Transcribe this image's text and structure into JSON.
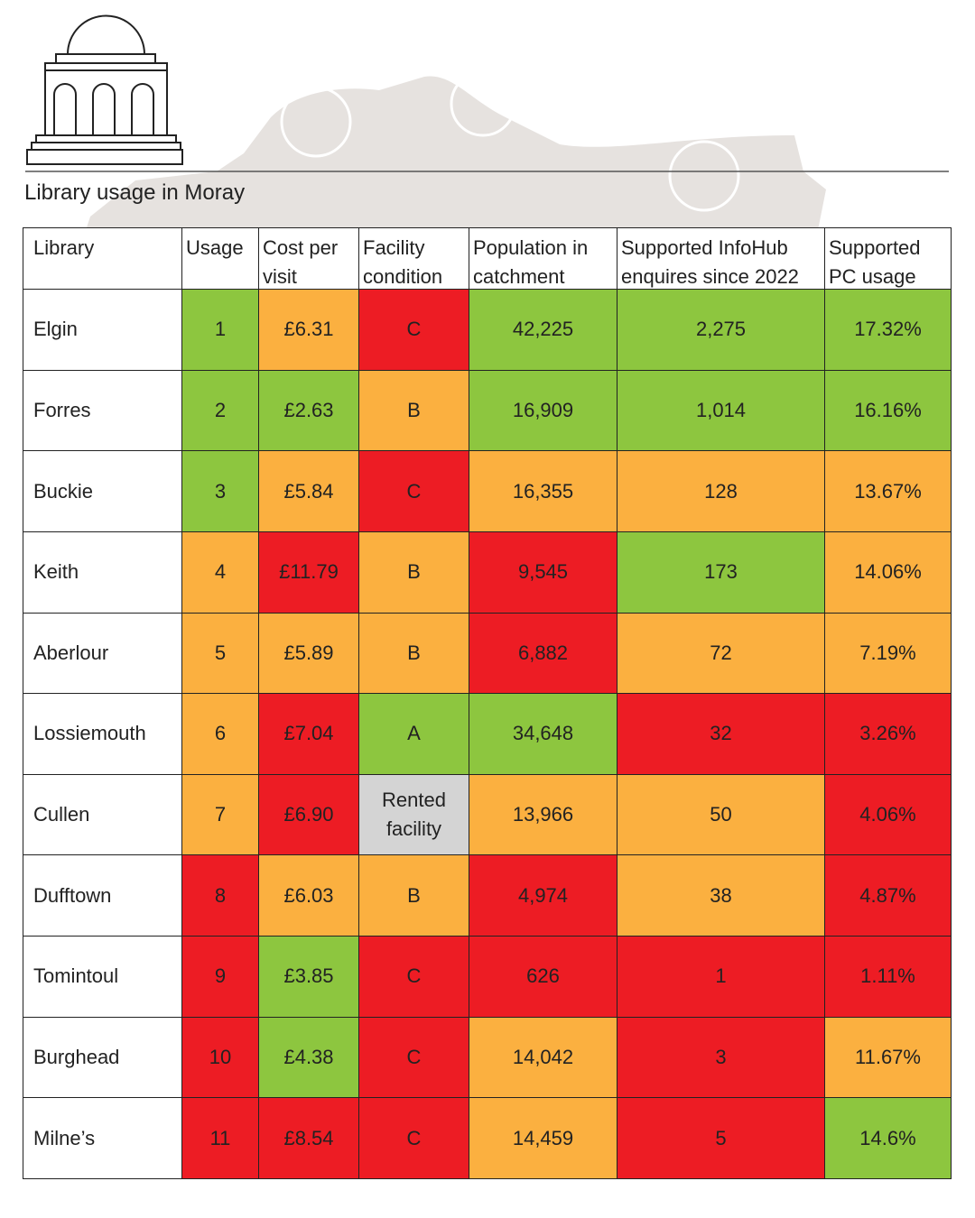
{
  "title": "Library usage in Moray",
  "table": {
    "headers": [
      "Library",
      "Usage",
      "Cost per visit",
      "Facility condition",
      "Population in catchment",
      "Supported InfoHub enquires since 2022",
      "Supported PC usage"
    ],
    "rows": [
      [
        "Elgin",
        "1",
        "£6.31",
        "C",
        "42,225",
        "2,275",
        "17.32%"
      ],
      [
        "Forres",
        "2",
        "£2.63",
        "B",
        "16,909",
        "1,014",
        "16.16%"
      ],
      [
        "Buckie",
        "3",
        "£5.84",
        "C",
        "16,355",
        "128",
        "13.67%"
      ],
      [
        "Keith",
        "4",
        "£11.79",
        "B",
        "9,545",
        "173",
        "14.06%"
      ],
      [
        "Aberlour",
        "5",
        "£5.89",
        "B",
        "6,882",
        "72",
        "7.19%"
      ],
      [
        "Lossiemouth",
        "6",
        "£7.04",
        "A",
        "34,648",
        "32",
        "3.26%"
      ],
      [
        "Cullen",
        "7",
        "£6.90",
        "Rented facility",
        "13,966",
        "50",
        "4.06%"
      ],
      [
        "Dufftown",
        "8",
        "£6.03",
        "B",
        "4,974",
        "38",
        "4.87%"
      ],
      [
        "Tomintoul",
        "9",
        "£3.85",
        "C",
        "626",
        "1",
        "1.11%"
      ],
      [
        "Burghead",
        "10",
        "£4.38",
        "C",
        "14,042",
        "3",
        "11.67%"
      ],
      [
        "Milne’s",
        "11",
        "£8.54",
        "C",
        "14,459",
        "5",
        "14.6%"
      ]
    ],
    "cell_colors": [
      [
        "#ffffff",
        "#8dc63f",
        "#fbb040",
        "#ed1c24",
        "#8dc63f",
        "#8dc63f",
        "#8dc63f"
      ],
      [
        "#ffffff",
        "#8dc63f",
        "#8dc63f",
        "#fbb040",
        "#8dc63f",
        "#8dc63f",
        "#8dc63f"
      ],
      [
        "#ffffff",
        "#8dc63f",
        "#fbb040",
        "#ed1c24",
        "#fbb040",
        "#fbb040",
        "#fbb040"
      ],
      [
        "#ffffff",
        "#fbb040",
        "#ed1c24",
        "#fbb040",
        "#ed1c24",
        "#8dc63f",
        "#fbb040"
      ],
      [
        "#ffffff",
        "#fbb040",
        "#fbb040",
        "#fbb040",
        "#ed1c24",
        "#fbb040",
        "#fbb040"
      ],
      [
        "#ffffff",
        "#fbb040",
        "#ed1c24",
        "#8dc63f",
        "#8dc63f",
        "#ed1c24",
        "#ed1c24"
      ],
      [
        "#ffffff",
        "#fbb040",
        "#ed1c24",
        "#d4d4d4",
        "#fbb040",
        "#fbb040",
        "#ed1c24"
      ],
      [
        "#ffffff",
        "#ed1c24",
        "#fbb040",
        "#fbb040",
        "#ed1c24",
        "#fbb040",
        "#ed1c24"
      ],
      [
        "#ffffff",
        "#ed1c24",
        "#8dc63f",
        "#ed1c24",
        "#ed1c24",
        "#ed1c24",
        "#ed1c24"
      ],
      [
        "#ffffff",
        "#ed1c24",
        "#8dc63f",
        "#ed1c24",
        "#fbb040",
        "#ed1c24",
        "#fbb040"
      ],
      [
        "#ffffff",
        "#ed1c24",
        "#ed1c24",
        "#ed1c24",
        "#fbb040",
        "#ed1c24",
        "#8dc63f"
      ]
    ]
  }
}
